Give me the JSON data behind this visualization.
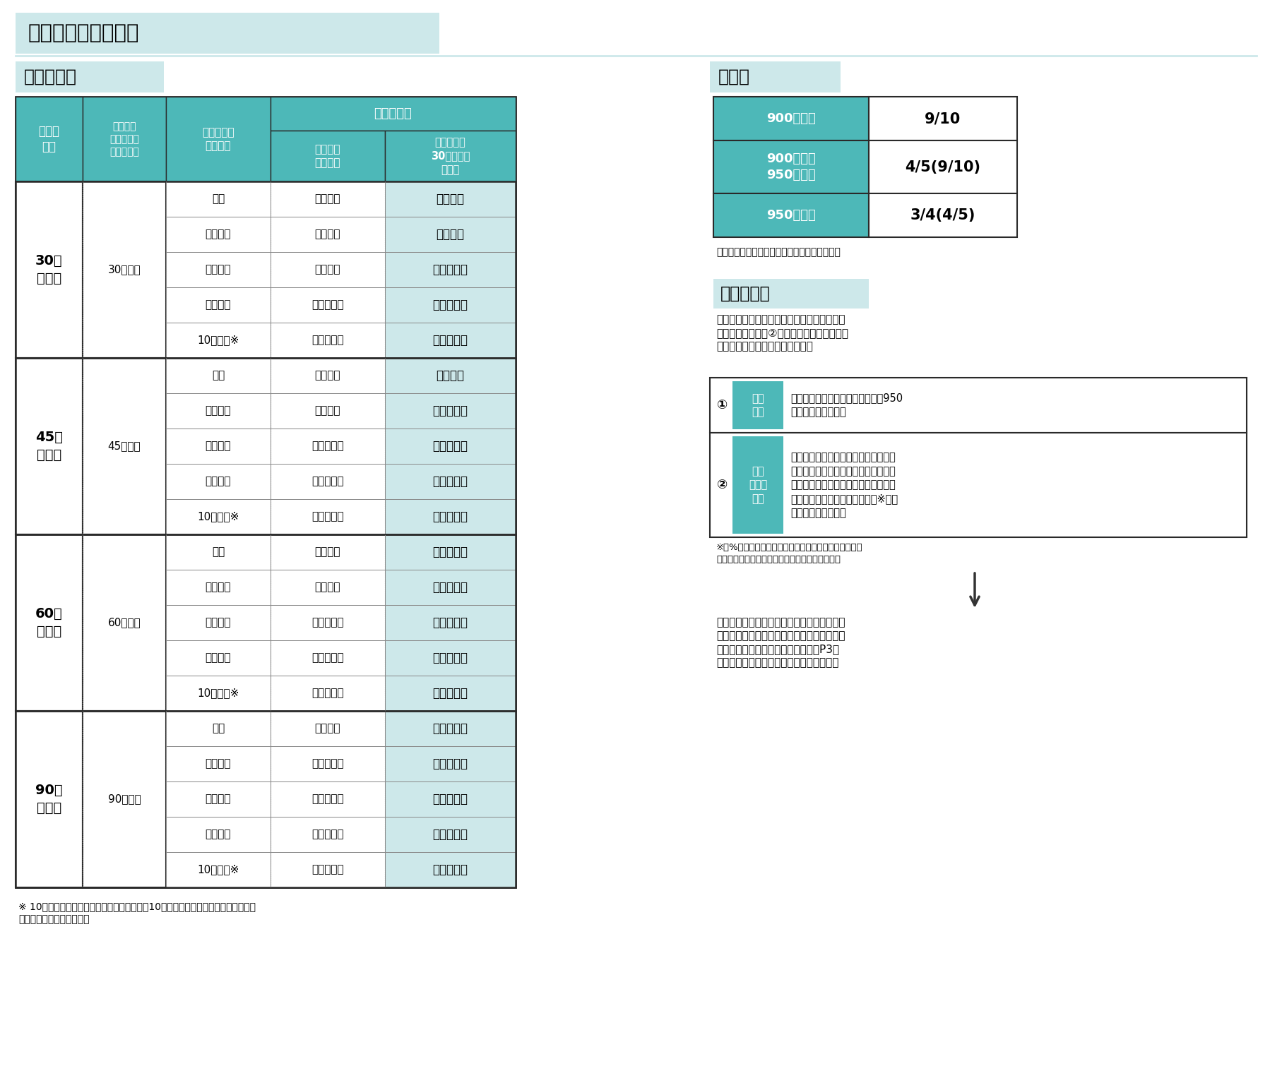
{
  "title": "助成上限額・助成率",
  "left_section_title": "助成上限額",
  "right_section_title": "助成率",
  "bg_color": "#ffffff",
  "teal": "#4db8b8",
  "light_teal": "#cde8ea",
  "white": "#ffffff",
  "border_dark": "#2a2a2a",
  "border_light": "#888888",
  "text_dark": "#1a1a1a",
  "courses": [
    {
      "name": "30円\nコース",
      "wage": "30円以上",
      "rows": [
        [
          "１人",
          "３０万円",
          "６０万円"
        ],
        [
          "２～３人",
          "５０万円",
          "９０万円"
        ],
        [
          "４～６人",
          "７０万円",
          "１００万円"
        ],
        [
          "７人以上",
          "１００万円",
          "１２０万円"
        ],
        [
          "10人以上※",
          "１２０万円",
          "１３０万円"
        ]
      ]
    },
    {
      "name": "45円\nコース",
      "wage": "45円以上",
      "rows": [
        [
          "１人",
          "４５万円",
          "８０万円"
        ],
        [
          "２～３人",
          "７０万円",
          "１１０万円"
        ],
        [
          "４～６人",
          "１００万円",
          "１４０万円"
        ],
        [
          "７人以上",
          "１５０万円",
          "１６０万円"
        ],
        [
          "10人以上※",
          "１８０万円",
          "１８０万円"
        ]
      ]
    },
    {
      "name": "60円\nコース",
      "wage": "60円以上",
      "rows": [
        [
          "１人",
          "６０万円",
          "１１０万円"
        ],
        [
          "２～３人",
          "９０万円",
          "１６０万円"
        ],
        [
          "４～６人",
          "１５０万円",
          "１９０万円"
        ],
        [
          "７人以上",
          "２３０万円",
          "２３０万円"
        ],
        [
          "10人以上※",
          "３００万円",
          "３００万円"
        ]
      ]
    },
    {
      "name": "90円\nコース",
      "wage": "90円以上",
      "rows": [
        [
          "１人",
          "９０万円",
          "１７０万円"
        ],
        [
          "２～３人",
          "１５０万円",
          "２４０万円"
        ],
        [
          "４～６人",
          "２７０万円",
          "２９０万円"
        ],
        [
          "７人以上",
          "４５０万円",
          "４５０万円"
        ],
        [
          "10人以上※",
          "６００万円",
          "６００万円"
        ]
      ]
    }
  ],
  "rate_table": [
    [
      "900円未満",
      "9/10"
    ],
    [
      "900円以上\n950円未満",
      "4/5(9/10)"
    ],
    [
      "950円以上",
      "3/4(4/5)"
    ]
  ],
  "rate_note": "（　）内は生産性要件を満たした事業場の場合",
  "special_title": "特例事業者",
  "special_text": "以下の要件に当てはまる場合が特例事業者と\nなります。なお、②に該当する場合は、助成\n対象経費の拡充も受けられます。",
  "special_items": [
    {
      "num": "①",
      "label": "賃金\n要件",
      "text": "申請事業場の事業場内最低賃金が950\n円未満である事業者"
    },
    {
      "num": "②",
      "label": "物価\n高騰等\n要件",
      "text": "原材料費の高騰など社会的・経済的環\n境の変化等の外的要因により、申請前\n３か月間のうち任意の１か月の利益率\nが前年同月に比べ３％ポイント※以上\n低下している事業者"
    }
  ],
  "percent_note": "※「%ポイント（パーセントポイント）」とは、パーセ\nントで表された２つの数値の差を表す単位です。",
  "bottom_text": "物価高騰等要件に該当する事業者は、一定の\n自動車の導入やパソコン等の新規導入が認め\nられる場合がございます。詳しくはP3の\n「助成対象経費の特例」をご覧ください。",
  "footnote": "※ 10人以上の上限額区分は、特例事業者が、10人以上の労働者の賃金を引き上げる\n　場合に対象になります。"
}
